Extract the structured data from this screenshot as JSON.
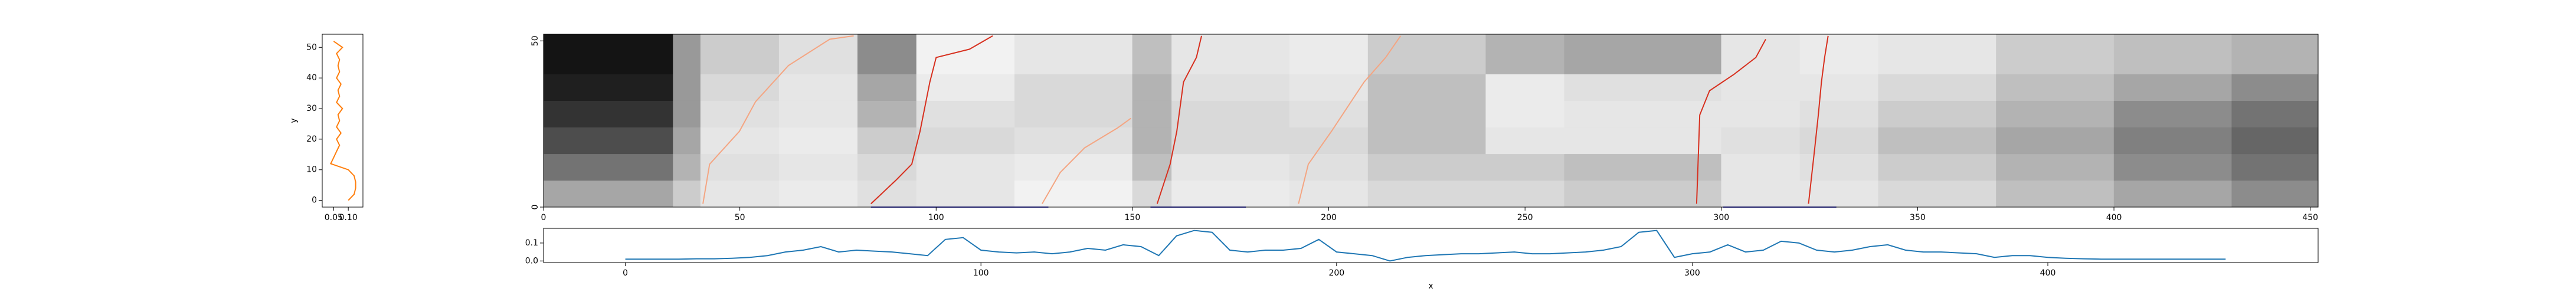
{
  "chart_data": [
    {
      "type": "heatmap",
      "cmap": "gray_r",
      "x_edges": [
        0,
        33,
        40,
        60,
        80,
        95,
        120,
        150,
        160,
        190,
        210,
        240,
        260,
        300,
        320,
        340,
        370,
        400,
        430,
        452
      ],
      "y_edges": [
        0,
        8,
        16,
        24,
        32,
        40,
        52
      ],
      "z": [
        [
          0.35,
          0.2,
          0.1,
          0.08,
          0.12,
          0.1,
          0.05,
          0.15,
          0.08,
          0.1,
          0.15,
          0.15,
          0.2,
          0.1,
          0.1,
          0.15,
          0.25,
          0.35,
          0.45
        ],
        [
          0.55,
          0.3,
          0.12,
          0.1,
          0.15,
          0.1,
          0.08,
          0.25,
          0.1,
          0.12,
          0.2,
          0.2,
          0.25,
          0.1,
          0.12,
          0.2,
          0.3,
          0.45,
          0.55
        ],
        [
          0.7,
          0.35,
          0.1,
          0.08,
          0.2,
          0.15,
          0.12,
          0.3,
          0.15,
          0.15,
          0.25,
          0.1,
          0.1,
          0.12,
          0.15,
          0.25,
          0.35,
          0.5,
          0.6
        ],
        [
          0.8,
          0.4,
          0.12,
          0.1,
          0.3,
          0.12,
          0.15,
          0.3,
          0.15,
          0.12,
          0.25,
          0.08,
          0.1,
          0.1,
          0.12,
          0.2,
          0.3,
          0.45,
          0.55
        ],
        [
          0.88,
          0.4,
          0.15,
          0.1,
          0.35,
          0.08,
          0.15,
          0.3,
          0.12,
          0.1,
          0.25,
          0.08,
          0.12,
          0.1,
          0.1,
          0.15,
          0.25,
          0.35,
          0.45
        ],
        [
          0.92,
          0.4,
          0.2,
          0.12,
          0.45,
          0.05,
          0.1,
          0.25,
          0.1,
          0.08,
          0.2,
          0.3,
          0.35,
          0.1,
          0.08,
          0.1,
          0.2,
          0.25,
          0.3
        ]
      ],
      "series": [
        {
          "color": "#f4a582",
          "x": [
            40.6,
            42.3,
            49.9,
            54,
            62.4,
            72.9,
            79
          ],
          "values": [
            1,
            12.9,
            22.8,
            31.7,
            42.6,
            50.5,
            51.5
          ]
        },
        {
          "color": "#d7301f",
          "x": [
            83.4,
            89.7,
            93.8,
            95.9,
            98.4,
            100,
            108.5,
            114.4
          ],
          "values": [
            1,
            8,
            12.9,
            22.8,
            37.6,
            45,
            47.5,
            51.5
          ]
        },
        {
          "color": "#f4a582",
          "x": [
            127,
            131.6,
            137.8,
            146.2,
            149.6
          ],
          "values": [
            1,
            10.4,
            17.8,
            23.8,
            26.7
          ]
        },
        {
          "color": "#d7301f",
          "x": [
            156.3,
            159.6,
            161.3,
            163,
            166.3,
            167.6
          ],
          "values": [
            1,
            12.9,
            22.8,
            37.6,
            45,
            51.5
          ]
        },
        {
          "color": "#f4a582",
          "x": [
            192.3,
            194.8,
            200.7,
            209,
            214.5,
            218.3
          ],
          "values": [
            1,
            12.9,
            22.8,
            37.6,
            45,
            51.5
          ]
        },
        {
          "color": "#d7301f",
          "x": [
            293.7,
            294.5,
            297,
            303.3,
            308.8,
            311.3
          ],
          "values": [
            1,
            27.7,
            35,
            40,
            45,
            50.5
          ]
        },
        {
          "color": "#d7301f",
          "x": [
            322.2,
            323.8,
            324.7,
            325.5,
            326.3,
            327.2
          ],
          "values": [
            1,
            17.8,
            27.7,
            37.6,
            45,
            51.5
          ]
        },
        {
          "color": "#3b3bd0",
          "x": [
            83.4,
            128.6
          ],
          "values": [
            0,
            0
          ]
        },
        {
          "color": "#3b3bd0",
          "x": [
            154.6,
            178.9
          ],
          "values": [
            0,
            0
          ]
        },
        {
          "color": "#3b3bd0",
          "x": [
            300.4,
            329.3
          ],
          "values": [
            0,
            0
          ]
        }
      ],
      "xlim": [
        0,
        452
      ],
      "ylim": [
        0,
        52
      ],
      "xticks": [
        0,
        50,
        100,
        150,
        200,
        250,
        300,
        350,
        400,
        450
      ],
      "yticks": [
        0,
        50
      ]
    },
    {
      "type": "line",
      "orientation": "vertical",
      "color": "#ff7f0e",
      "y": [
        0,
        2,
        4,
        6,
        8,
        10,
        12,
        14,
        16,
        18,
        20,
        22,
        24,
        26,
        28,
        30,
        32,
        34,
        36,
        38,
        40,
        42,
        44,
        46,
        48,
        50,
        52
      ],
      "values": [
        0.1,
        0.12,
        0.125,
        0.125,
        0.12,
        0.1,
        0.04,
        0.05,
        0.06,
        0.07,
        0.06,
        0.075,
        0.06,
        0.07,
        0.065,
        0.08,
        0.06,
        0.07,
        0.065,
        0.075,
        0.06,
        0.07,
        0.065,
        0.07,
        0.06,
        0.08,
        0.05
      ],
      "xlim": [
        0.011,
        0.15
      ],
      "ylim": [
        -2.2,
        54.3
      ],
      "xticks": [
        0.05,
        {
          "value": 0.1,
          "label": "0.10"
        }
      ],
      "yticks": [
        0,
        10,
        20,
        30,
        40,
        50
      ],
      "ylabel": "y"
    },
    {
      "type": "line",
      "color": "#1f77b4",
      "x": [
        0,
        5,
        10,
        15,
        20,
        25,
        30,
        35,
        40,
        45,
        50,
        55,
        60,
        65,
        70,
        75,
        80,
        85,
        90,
        95,
        100,
        105,
        110,
        115,
        120,
        125,
        130,
        135,
        140,
        145,
        150,
        155,
        160,
        165,
        170,
        175,
        180,
        185,
        190,
        195,
        200,
        205,
        210,
        215,
        220,
        225,
        230,
        235,
        240,
        245,
        250,
        255,
        260,
        265,
        270,
        275,
        280,
        285,
        290,
        295,
        300,
        305,
        310,
        315,
        320,
        325,
        330,
        335,
        340,
        345,
        350,
        355,
        360,
        365,
        370,
        375,
        380,
        385,
        390,
        395,
        400,
        405,
        410,
        415,
        420,
        425,
        430,
        435,
        440,
        445,
        450
      ],
      "values": [
        0.01,
        0.01,
        0.01,
        0.01,
        0.012,
        0.012,
        0.015,
        0.02,
        0.03,
        0.05,
        0.06,
        0.08,
        0.05,
        0.06,
        0.055,
        0.05,
        0.04,
        0.03,
        0.12,
        0.13,
        0.06,
        0.05,
        0.045,
        0.05,
        0.04,
        0.05,
        0.07,
        0.06,
        0.09,
        0.08,
        0.03,
        0.14,
        0.17,
        0.16,
        0.06,
        0.05,
        0.06,
        0.06,
        0.07,
        0.12,
        0.05,
        0.04,
        0.03,
        0.0,
        0.02,
        0.03,
        0.035,
        0.04,
        0.04,
        0.045,
        0.05,
        0.04,
        0.04,
        0.045,
        0.05,
        0.06,
        0.08,
        0.16,
        0.17,
        0.02,
        0.04,
        0.05,
        0.09,
        0.05,
        0.06,
        0.11,
        0.1,
        0.06,
        0.05,
        0.06,
        0.08,
        0.09,
        0.06,
        0.05,
        0.05,
        0.045,
        0.04,
        0.02,
        0.03,
        0.03,
        0.02,
        0.015,
        0.012,
        0.01,
        0.01,
        0.01,
        0.01,
        0.01,
        0.01,
        0.01,
        0.01
      ],
      "xlim": [
        -23,
        476
      ],
      "ylim": [
        -0.009,
        0.182
      ],
      "xticks": [
        0,
        100,
        200,
        300,
        400
      ],
      "yticks": [
        {
          "value": 0,
          "label": "0.0"
        },
        {
          "value": 0.1,
          "label": "0.1"
        }
      ],
      "xlabel": "x"
    }
  ]
}
